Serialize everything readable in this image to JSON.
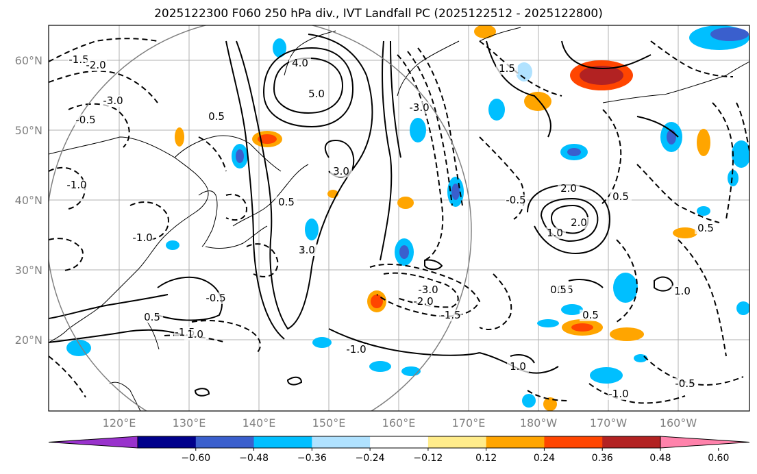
{
  "title": "2025122300 F060 250 hPa div., IVT Landfall PC (2025122512 - 2025122800)",
  "map": {
    "lat_labels": [
      "60°N",
      "50°N",
      "40°N",
      "30°N",
      "20°N"
    ],
    "lon_labels": [
      "120°E",
      "130°E",
      "140°E",
      "150°E",
      "160°E",
      "170°E",
      "180°W",
      "170°W",
      "160°W"
    ]
  },
  "colorbar": {
    "ticks": [
      "−0.60",
      "−0.48",
      "−0.36",
      "−0.24",
      "−0.12",
      "0.12",
      "0.24",
      "0.36",
      "0.48",
      "0.60"
    ],
    "colors": [
      "#9932cc",
      "#00008b",
      "#3a5fcd",
      "#00bfff",
      "#b0e2ff",
      "#ffffff",
      "#ffec8b",
      "#ffa500",
      "#ff4500",
      "#b22222",
      "#ff82ab"
    ]
  },
  "contour_labels": [
    "-1.5",
    "-2.0",
    "-3.0",
    "-0.5",
    "-1.0",
    "0.5",
    "5.0",
    "4.0",
    "3.0",
    "1.0",
    "-0.5",
    "-1.5",
    "-3.0",
    "-2.0",
    "-1.5",
    "1.0",
    "0.5",
    "-1.0",
    "2.0",
    "0.5",
    "-0.5",
    "-1.0",
    "1.0",
    "0.5",
    "-1.0",
    "-0.5",
    "3.0",
    "2.0",
    "1.0",
    "-3.0",
    "1.5",
    "1.0",
    "0.5",
    "0.5",
    "0.5",
    "0.5"
  ]
}
